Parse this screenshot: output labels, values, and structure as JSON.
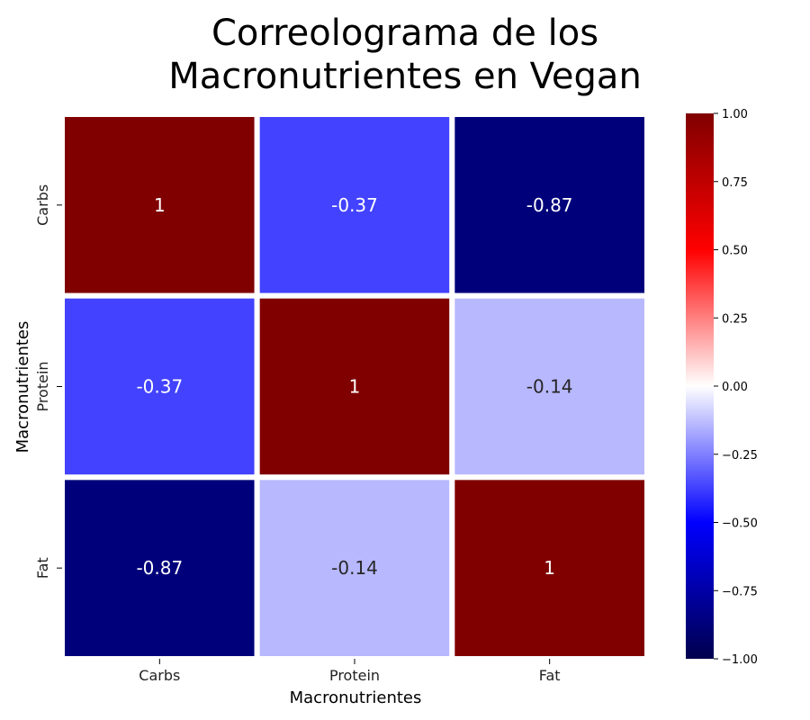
{
  "chart_data": {
    "type": "heatmap",
    "title": [
      "Correolograma de los",
      "Macronutrientes en Vegan"
    ],
    "xlabel": "Macronutrientes",
    "ylabel": "Macronutrientes",
    "x_categories": [
      "Carbs",
      "Protein",
      "Fat"
    ],
    "y_categories": [
      "Carbs",
      "Protein",
      "Fat"
    ],
    "values": [
      [
        1,
        -0.37,
        -0.87
      ],
      [
        -0.37,
        1,
        -0.14
      ],
      [
        -0.87,
        -0.14,
        1
      ]
    ],
    "annotations": [
      [
        "1",
        "-0.37",
        "-0.87"
      ],
      [
        "-0.37",
        "1",
        "-0.14"
      ],
      [
        "-0.87",
        "-0.14",
        "1"
      ]
    ],
    "colorbar": {
      "min": -1.0,
      "max": 1.0,
      "ticks": [
        1.0,
        0.75,
        0.5,
        0.25,
        0.0,
        -0.25,
        -0.5,
        -0.75,
        -1.0
      ],
      "tick_labels": [
        "1.00",
        "0.75",
        "0.50",
        "0.25",
        "0.00",
        "−0.25",
        "−0.50",
        "−0.75",
        "−1.00"
      ],
      "colormap": "seismic"
    }
  }
}
